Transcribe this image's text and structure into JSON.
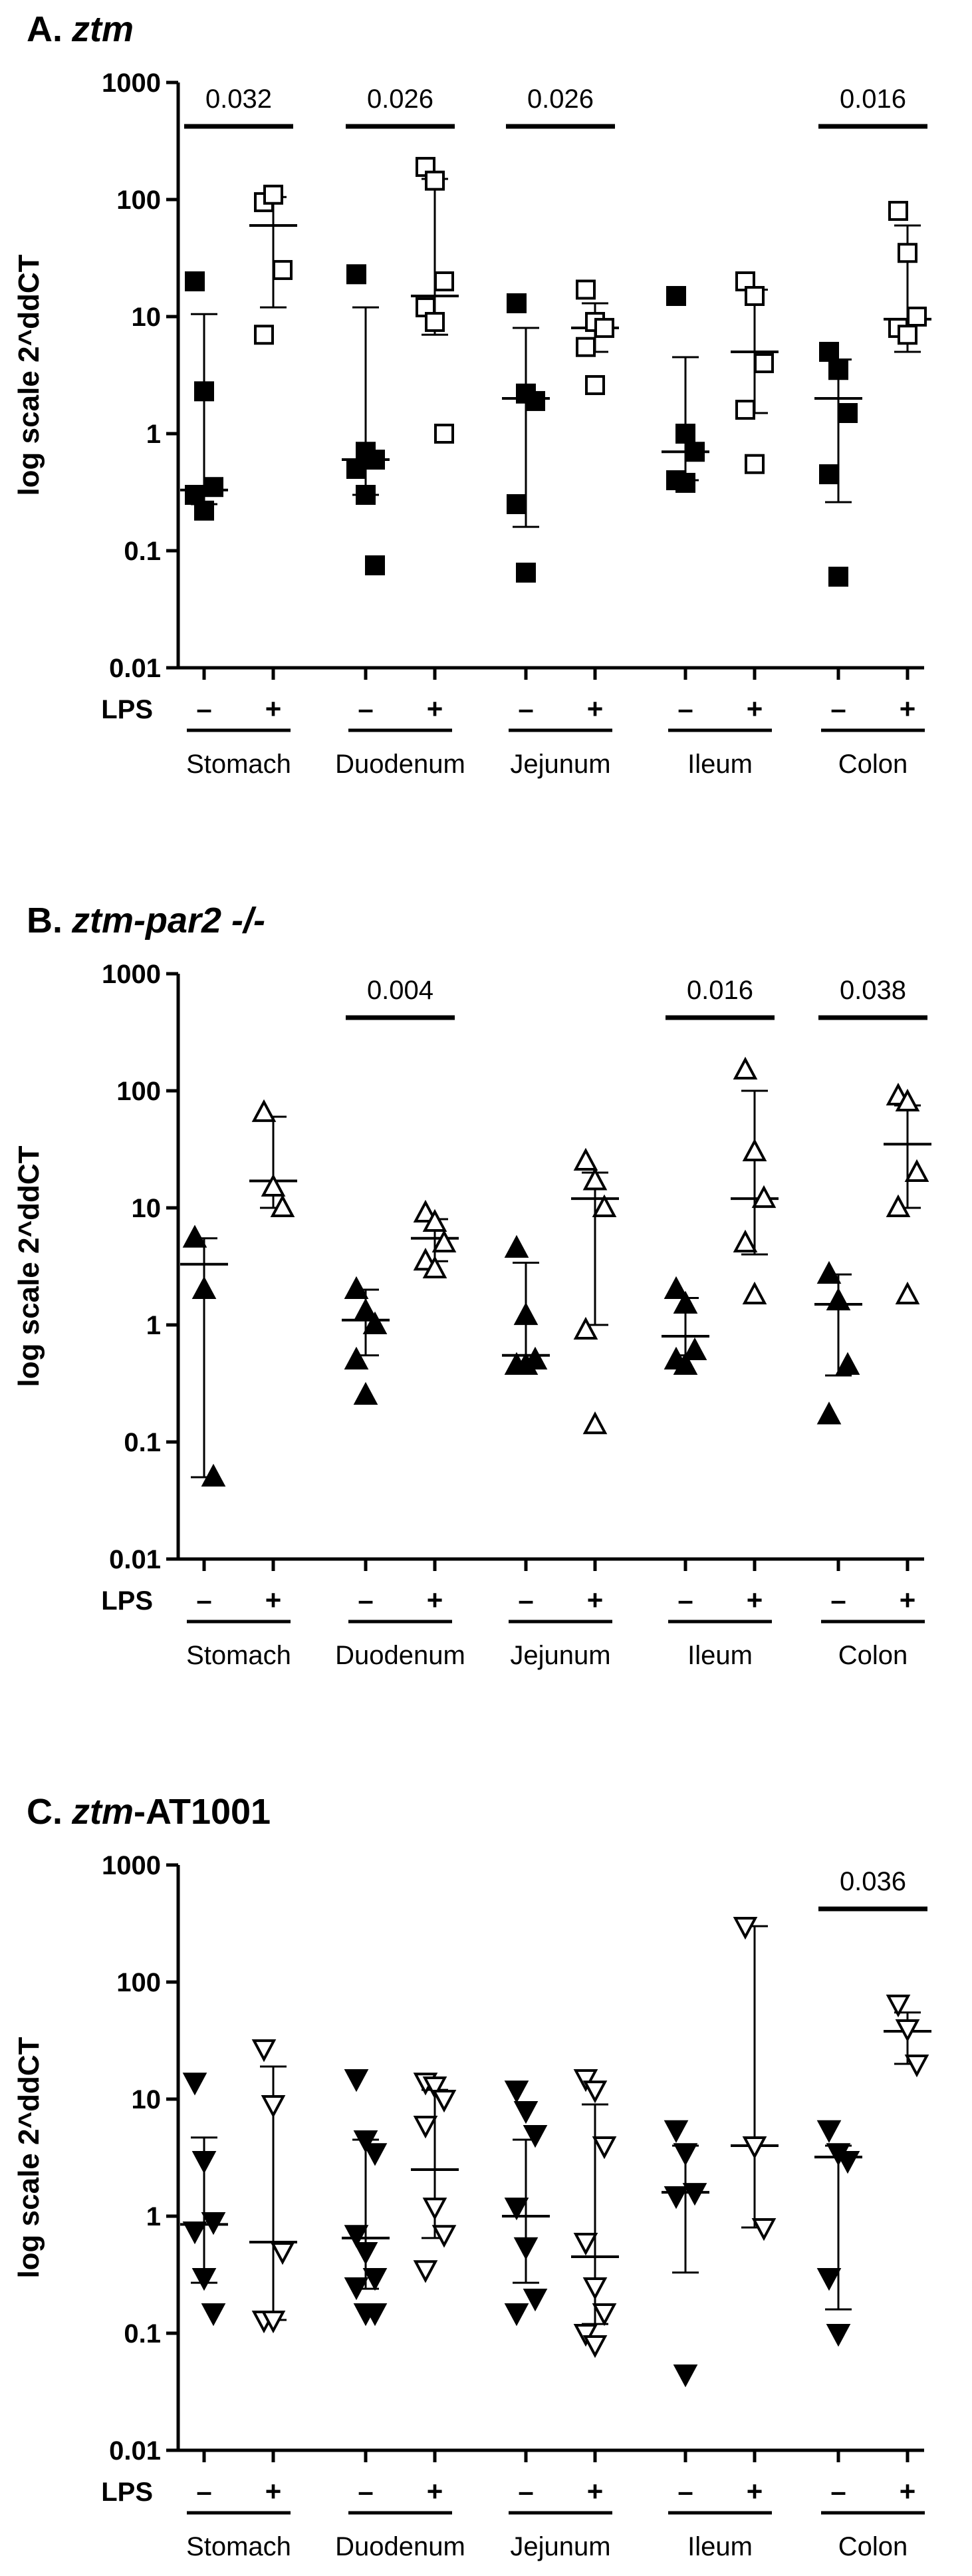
{
  "chart_data": [
    {
      "type": "scatter",
      "title_parts": [
        {
          "text": "A.",
          "italic": false
        },
        {
          "text": "ztm",
          "italic": true
        }
      ],
      "y_label": "log scale 2^ddCT",
      "y_log": true,
      "ylim": [
        0.01,
        1000
      ],
      "yticks": [
        0.01,
        0.1,
        1,
        10,
        100,
        1000
      ],
      "x_label": "LPS",
      "marker": "square",
      "series": [
        {
          "name": "–",
          "color": "#000000",
          "filled": true
        },
        {
          "name": "+",
          "color": "#000000",
          "filled": false
        }
      ],
      "groups": [
        {
          "name": "Stomach",
          "values": [
            [
              20,
              2.3,
              0.35,
              0.3,
              0.22
            ],
            [
              95,
              110,
              25,
              7
            ]
          ],
          "median": [
            0.33,
            60
          ],
          "error": [
            [
              0.25,
              10.5
            ],
            [
              12,
              105
            ]
          ],
          "p_value": 0.032
        },
        {
          "name": "Duodenum",
          "values": [
            [
              23,
              0.7,
              0.6,
              0.5,
              0.3,
              0.075
            ],
            [
              190,
              145,
              20,
              12,
              9,
              1.0
            ]
          ],
          "median": [
            0.6,
            15
          ],
          "error": [
            [
              0.3,
              12
            ],
            [
              7,
              150
            ]
          ],
          "p_value": 0.026
        },
        {
          "name": "Jejunum",
          "values": [
            [
              13,
              2.2,
              1.9,
              0.25,
              0.065
            ],
            [
              17,
              9,
              8,
              5.5,
              2.6
            ]
          ],
          "median": [
            2,
            8
          ],
          "error": [
            [
              0.16,
              8
            ],
            [
              5,
              13
            ]
          ],
          "p_value": 0.026
        },
        {
          "name": "Ileum",
          "values": [
            [
              15,
              1.0,
              0.7,
              0.4,
              0.38
            ],
            [
              20,
              15,
              4,
              1.6,
              0.55
            ]
          ],
          "median": [
            0.7,
            5
          ],
          "error": [
            [
              0.4,
              4.5
            ],
            [
              1.5,
              17
            ]
          ]
        },
        {
          "name": "Colon",
          "values": [
            [
              5,
              3.5,
              1.5,
              0.45,
              0.06
            ],
            [
              80,
              35,
              10,
              8,
              7
            ]
          ],
          "median": [
            2,
            9.5
          ],
          "error": [
            [
              0.26,
              4.3
            ],
            [
              5,
              60
            ]
          ],
          "p_value": 0.016
        }
      ]
    },
    {
      "type": "scatter",
      "title_parts": [
        {
          "text": "B.",
          "italic": false
        },
        {
          "text": "ztm-par2 -/-",
          "italic": true
        }
      ],
      "y_label": "log scale 2^ddCT",
      "y_log": true,
      "ylim": [
        0.01,
        1000
      ],
      "yticks": [
        0.01,
        0.1,
        1,
        10,
        100,
        1000
      ],
      "x_label": "LPS",
      "marker": "triangle-up",
      "series": [
        {
          "name": "–",
          "color": "#000000",
          "filled": true
        },
        {
          "name": "+",
          "color": "#000000",
          "filled": false
        }
      ],
      "groups": [
        {
          "name": "Stomach",
          "values": [
            [
              5.5,
              2.0,
              0.05
            ],
            [
              65,
              15,
              10
            ]
          ],
          "median": [
            3.3,
            17
          ],
          "error": [
            [
              0.05,
              5.5
            ],
            [
              10,
              60
            ]
          ]
        },
        {
          "name": "Duodenum",
          "values": [
            [
              2.0,
              1.3,
              1.0,
              0.5,
              0.25
            ],
            [
              9,
              7.5,
              5,
              3.5,
              3
            ]
          ],
          "median": [
            1.1,
            5.5
          ],
          "error": [
            [
              0.55,
              2
            ],
            [
              3.5,
              8
            ]
          ],
          "p_value": 0.004
        },
        {
          "name": "Jejunum",
          "values": [
            [
              4.5,
              1.2,
              0.5,
              0.45,
              0.45
            ],
            [
              25,
              17,
              10,
              0.9,
              0.14
            ]
          ],
          "median": [
            0.55,
            12
          ],
          "error": [
            [
              0.45,
              3.4
            ],
            [
              1,
              20
            ]
          ]
        },
        {
          "name": "Ileum",
          "values": [
            [
              2.0,
              1.5,
              0.6,
              0.5,
              0.45
            ],
            [
              150,
              30,
              12,
              5,
              1.8
            ]
          ],
          "median": [
            0.8,
            12
          ],
          "error": [
            [
              0.55,
              1.7
            ],
            [
              4,
              100
            ]
          ],
          "p_value": 0.016
        },
        {
          "name": "Colon",
          "values": [
            [
              2.7,
              1.6,
              0.45,
              0.17
            ],
            [
              90,
              80,
              20,
              10,
              1.8
            ]
          ],
          "median": [
            1.5,
            35
          ],
          "error": [
            [
              0.37,
              2.7
            ],
            [
              10,
              75
            ]
          ],
          "p_value": 0.038
        }
      ]
    },
    {
      "type": "scatter",
      "title_parts": [
        {
          "text": "C.",
          "italic": false
        },
        {
          "text": "ztm",
          "italic": true
        },
        {
          "text": "-AT1001",
          "italic": false
        }
      ],
      "y_label": "log scale 2^ddCT",
      "y_log": true,
      "ylim": [
        0.01,
        1000
      ],
      "yticks": [
        0.01,
        0.1,
        1,
        10,
        100,
        1000
      ],
      "x_label": "LPS",
      "marker": "triangle-down",
      "series": [
        {
          "name": "–",
          "color": "#000000",
          "filled": true
        },
        {
          "name": "+",
          "color": "#000000",
          "filled": false
        }
      ],
      "groups": [
        {
          "name": "Stomach",
          "values": [
            [
              14,
              3,
              0.9,
              0.75,
              0.3,
              0.15
            ],
            [
              27,
              9,
              0.5,
              0.13,
              0.13
            ]
          ],
          "median": [
            0.85,
            0.6
          ],
          "error": [
            [
              0.27,
              4.7
            ],
            [
              0.13,
              19
            ]
          ]
        },
        {
          "name": "Duodenum",
          "values": [
            [
              15,
              4.5,
              3.5,
              0.7,
              0.5,
              0.3,
              0.25,
              0.15,
              0.15
            ],
            [
              14,
              13,
              10,
              6,
              1.2,
              0.7,
              0.35
            ]
          ],
          "median": [
            0.65,
            2.5
          ],
          "error": [
            [
              0.24,
              4.5
            ],
            [
              0.65,
              12
            ]
          ]
        },
        {
          "name": "Jejunum",
          "values": [
            [
              12,
              8,
              5,
              1.2,
              0.55,
              0.2,
              0.15
            ],
            [
              15,
              12,
              4,
              0.6,
              0.25,
              0.15,
              0.1,
              0.08
            ]
          ],
          "median": [
            1.0,
            0.45
          ],
          "error": [
            [
              0.27,
              4.5
            ],
            [
              0.12,
              9
            ]
          ]
        },
        {
          "name": "Ileum",
          "values": [
            [
              5.5,
              3.5,
              1.6,
              1.5,
              0.045
            ],
            [
              300,
              4,
              0.8
            ]
          ],
          "median": [
            1.6,
            4
          ],
          "error": [
            [
              0.33,
              4
            ],
            [
              0.8,
              300
            ]
          ]
        },
        {
          "name": "Colon",
          "values": [
            [
              5.5,
              3.5,
              3.0,
              0.3,
              0.1
            ],
            [
              65,
              40,
              20
            ]
          ],
          "median": [
            3.2,
            38
          ],
          "error": [
            [
              0.16,
              4
            ],
            [
              20,
              55
            ]
          ],
          "p_value": 0.036
        }
      ]
    }
  ]
}
